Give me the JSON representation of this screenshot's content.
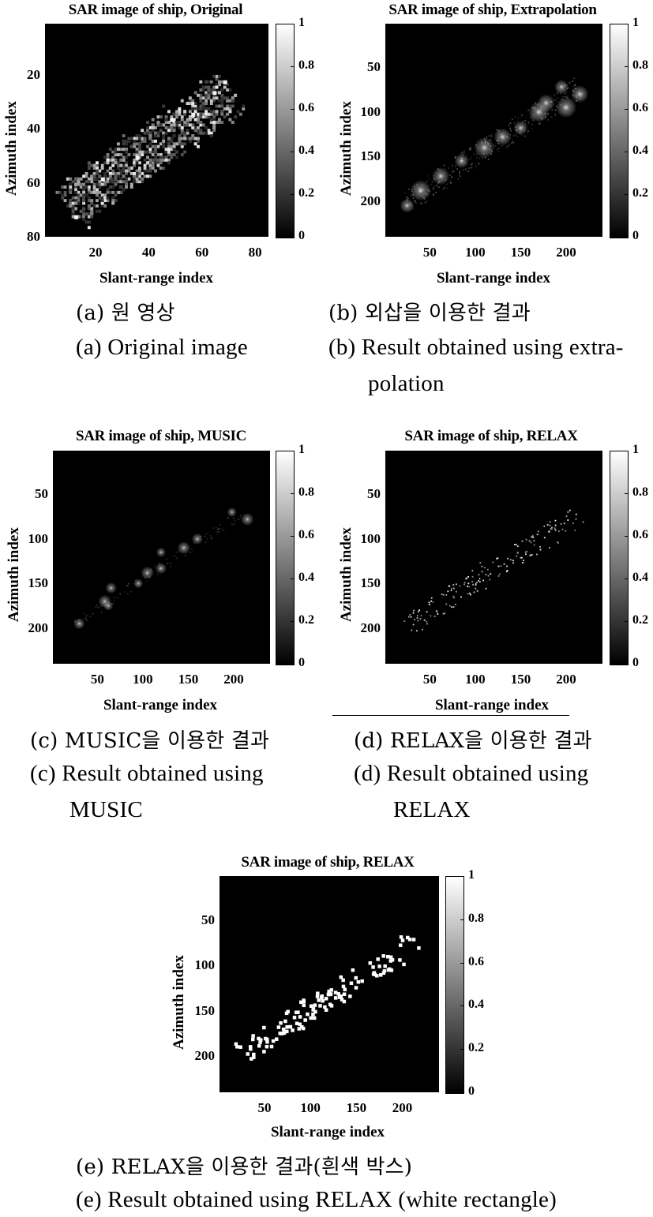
{
  "chart_data": [
    {
      "id": "a",
      "type": "heatmap",
      "title": "SAR image of ship, Original",
      "xlabel": "Slant-range index",
      "ylabel": "Azimuth index",
      "xlim": [
        1,
        85
      ],
      "ylim": [
        80,
        1
      ],
      "xticks": [
        "20",
        "40",
        "60",
        "80"
      ],
      "xtick_values": [
        20,
        40,
        60,
        80
      ],
      "yticks": [
        "20",
        "40",
        "60",
        "80"
      ],
      "ytick_values": [
        20,
        40,
        60,
        80
      ],
      "colorbar": {
        "range": [
          0,
          1
        ],
        "ticks": [
          "0",
          "0.2",
          "0.4",
          "0.6",
          "0.8",
          "1"
        ],
        "colormap": "gray"
      },
      "style": "speckle",
      "shape": {
        "from": [
          10,
          68
        ],
        "to": [
          70,
          26
        ],
        "halfwidth": 8
      },
      "bright_points": [
        [
          12,
          72
        ],
        [
          22,
          58
        ],
        [
          35,
          50
        ],
        [
          48,
          36
        ],
        [
          56,
          34
        ],
        [
          64,
          26
        ],
        [
          68,
          22
        ]
      ]
    },
    {
      "id": "b",
      "type": "heatmap",
      "title": "SAR image of ship, Extrapolation",
      "xlabel": "Slant-range index",
      "ylabel": "Azimuth index",
      "xlim": [
        1,
        240
      ],
      "ylim": [
        240,
        1
      ],
      "xticks": [
        "50",
        "100",
        "150",
        "200"
      ],
      "xtick_values": [
        50,
        100,
        150,
        200
      ],
      "yticks": [
        "50",
        "100",
        "150",
        "200"
      ],
      "ytick_values": [
        50,
        100,
        150,
        200
      ],
      "colorbar": {
        "range": [
          0,
          1
        ],
        "ticks": [
          "0",
          "0.2",
          "0.4",
          "0.6",
          "0.8",
          "1"
        ],
        "colormap": "gray"
      },
      "style": "glow",
      "shape": {
        "from": [
          25,
          200
        ],
        "to": [
          215,
          70
        ],
        "halfwidth": 14
      },
      "bright_points": [
        [
          195,
          72
        ],
        [
          215,
          80
        ],
        [
          170,
          100
        ],
        [
          150,
          118
        ],
        [
          130,
          128
        ],
        [
          110,
          140
        ],
        [
          85,
          155
        ],
        [
          62,
          172
        ],
        [
          40,
          188
        ],
        [
          25,
          205
        ],
        [
          178,
          90
        ],
        [
          200,
          95
        ]
      ]
    },
    {
      "id": "c",
      "type": "heatmap",
      "title": "SAR image of ship, MUSIC",
      "xlabel": "Slant-range index",
      "ylabel": "Azimuth index",
      "xlim": [
        1,
        240
      ],
      "ylim": [
        240,
        1
      ],
      "xticks": [
        "50",
        "100",
        "150",
        "200"
      ],
      "xtick_values": [
        50,
        100,
        150,
        200
      ],
      "yticks": [
        "50",
        "100",
        "150",
        "200"
      ],
      "ytick_values": [
        50,
        100,
        150,
        200
      ],
      "colorbar": {
        "range": [
          0,
          1
        ],
        "ticks": [
          "0",
          "0.2",
          "0.4",
          "0.6",
          "0.8",
          "1"
        ],
        "colormap": "gray"
      },
      "style": "sparse",
      "shape": {
        "from": [
          25,
          195
        ],
        "to": [
          210,
          70
        ],
        "halfwidth": 6
      },
      "bright_points": [
        [
          198,
          70
        ],
        [
          160,
          100
        ],
        [
          145,
          110
        ],
        [
          120,
          115
        ],
        [
          120,
          133
        ],
        [
          105,
          138
        ],
        [
          95,
          150
        ],
        [
          65,
          155
        ],
        [
          58,
          170
        ],
        [
          62,
          175
        ],
        [
          30,
          195
        ],
        [
          215,
          78
        ]
      ]
    },
    {
      "id": "d",
      "type": "heatmap",
      "title": "SAR image of ship, RELAX",
      "xlabel": "Slant-range index",
      "ylabel": "Azimuth index",
      "xlim": [
        1,
        240
      ],
      "ylim": [
        240,
        1
      ],
      "xticks": [
        "50",
        "100",
        "150",
        "200"
      ],
      "xtick_values": [
        50,
        100,
        150,
        200
      ],
      "yticks": [
        "50",
        "100",
        "150",
        "200"
      ],
      "ytick_values": [
        50,
        100,
        150,
        200
      ],
      "colorbar": {
        "range": [
          0,
          1
        ],
        "ticks": [
          "0",
          "0.2",
          "0.4",
          "0.6",
          "0.8",
          "1"
        ],
        "colormap": "gray"
      },
      "style": "dots",
      "shape": {
        "from": [
          25,
          195
        ],
        "to": [
          215,
          72
        ],
        "halfwidth": 12
      },
      "bright_points": []
    },
    {
      "id": "e",
      "type": "heatmap",
      "title": "SAR image of ship, RELAX",
      "xlabel": "Slant-range index",
      "ylabel": "Azimuth index",
      "xlim": [
        1,
        240
      ],
      "ylim": [
        240,
        1
      ],
      "xticks": [
        "50",
        "100",
        "150",
        "200"
      ],
      "xtick_values": [
        50,
        100,
        150,
        200
      ],
      "yticks": [
        "50",
        "100",
        "150",
        "200"
      ],
      "ytick_values": [
        50,
        100,
        150,
        200
      ],
      "colorbar": {
        "range": [
          0,
          1
        ],
        "ticks": [
          "0",
          "0.2",
          "0.4",
          "0.6",
          "0.8",
          "1"
        ],
        "colormap": "gray"
      },
      "style": "rects",
      "shape": {
        "from": [
          25,
          195
        ],
        "to": [
          215,
          72
        ],
        "halfwidth": 12
      },
      "bright_points": []
    }
  ],
  "captions": {
    "a_kr": "(a) 원 영상",
    "a_en": "(a) Original image",
    "b_kr": "(b) 외삽을 이용한 결과",
    "b_en1": "(b) Result obtained using extra-",
    "b_en2": "polation",
    "c_kr": "(c) MUSIC을 이용한 결과",
    "c_en1": "(c) Result obtained using",
    "c_en2": "MUSIC",
    "d_kr": "(d) RELAX을 이용한 결과",
    "d_en1": "(d) Result obtained using",
    "d_en2": "RELAX",
    "e_kr": "(e) RELAX을 이용한 결과(흰색 박스)",
    "e_en": "(e) Result obtained using RELAX (white rectangle)"
  }
}
